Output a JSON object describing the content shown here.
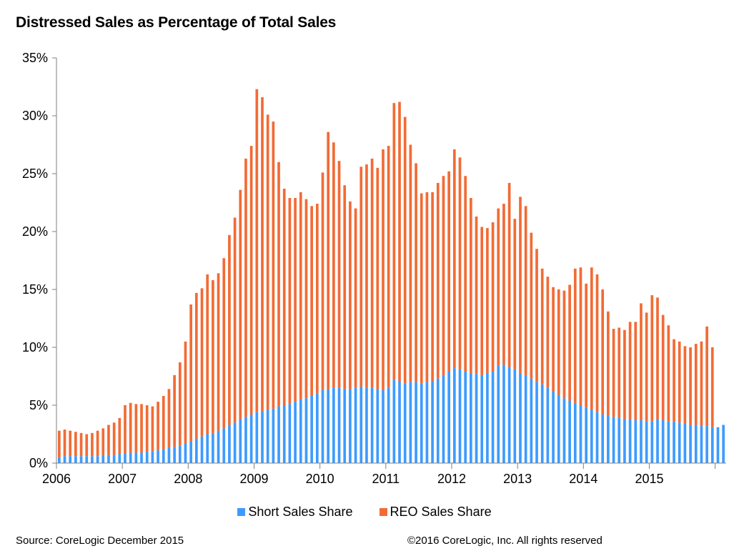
{
  "chart_data": {
    "type": "bar",
    "stacked": true,
    "title": "Distressed Sales as Percentage of Total Sales",
    "xlabel": "",
    "ylabel": "",
    "ylim": [
      0,
      35
    ],
    "y_ticks": [
      "0%",
      "5%",
      "10%",
      "15%",
      "20%",
      "25%",
      "30%",
      "35%"
    ],
    "x_ticks": [
      "2006",
      "2007",
      "2008",
      "2009",
      "2010",
      "2011",
      "2012",
      "2013",
      "2014",
      "2015"
    ],
    "start_year": 2006,
    "grid": false,
    "legend_position": "bottom",
    "series": [
      {
        "name": "Short Sales Share",
        "color": "#3d9bff",
        "values": [
          0.5,
          0.6,
          0.6,
          0.6,
          0.6,
          0.6,
          0.6,
          0.6,
          0.7,
          0.7,
          0.7,
          0.8,
          0.8,
          0.9,
          0.9,
          0.9,
          1.0,
          1.0,
          1.1,
          1.2,
          1.3,
          1.4,
          1.5,
          1.7,
          1.9,
          2.1,
          2.3,
          2.5,
          2.6,
          2.8,
          3.0,
          3.3,
          3.5,
          3.8,
          4.0,
          4.2,
          4.4,
          4.5,
          4.6,
          4.7,
          4.9,
          5.0,
          5.1,
          5.3,
          5.5,
          5.6,
          5.8,
          6.0,
          6.3,
          6.4,
          6.5,
          6.5,
          6.4,
          6.4,
          6.5,
          6.6,
          6.5,
          6.5,
          6.4,
          6.3,
          6.5,
          7.2,
          7.1,
          6.9,
          7.0,
          7.0,
          6.9,
          7.0,
          7.1,
          7.3,
          7.6,
          7.9,
          8.2,
          8.1,
          7.9,
          7.8,
          7.7,
          7.6,
          7.8,
          7.9,
          8.4,
          8.5,
          8.3,
          8.1,
          7.8,
          7.6,
          7.3,
          7.0,
          6.8,
          6.5,
          6.2,
          5.9,
          5.6,
          5.4,
          5.2,
          5.0,
          4.8,
          4.6,
          4.4,
          4.2,
          4.1,
          4.0,
          3.9,
          3.8,
          3.8,
          3.7,
          3.7,
          3.6,
          3.6,
          3.8,
          3.7,
          3.6,
          3.6,
          3.5,
          3.4,
          3.3,
          3.3,
          3.2,
          3.2,
          3.1,
          3.1,
          3.3
        ]
      },
      {
        "name": "REO Sales Share",
        "color": "#f26b35",
        "values": [
          2.3,
          2.3,
          2.2,
          2.1,
          2.0,
          1.9,
          2.0,
          2.2,
          2.3,
          2.6,
          2.8,
          3.1,
          4.2,
          4.3,
          4.2,
          4.2,
          4.0,
          3.9,
          4.2,
          4.6,
          5.1,
          6.2,
          7.2,
          8.8,
          11.8,
          12.6,
          12.8,
          13.8,
          13.2,
          13.6,
          14.7,
          16.4,
          17.7,
          19.8,
          22.3,
          23.2,
          27.9,
          27.1,
          25.5,
          24.8,
          21.1,
          18.7,
          17.8,
          17.6,
          17.9,
          17.2,
          16.4,
          16.4,
          18.8,
          22.2,
          21.2,
          19.6,
          17.6,
          16.2,
          15.5,
          19.0,
          19.3,
          19.8,
          19.1,
          20.8,
          20.9,
          23.9,
          24.1,
          23.0,
          20.5,
          18.9,
          16.4,
          16.4,
          16.3,
          16.9,
          17.2,
          17.3,
          18.9,
          18.3,
          16.9,
          15.1,
          13.6,
          12.8,
          12.5,
          12.9,
          13.6,
          13.9,
          15.9,
          13.0,
          15.2,
          14.6,
          12.6,
          11.5,
          10.0,
          9.6,
          9.0,
          9.1,
          9.3,
          10.0,
          11.6,
          11.9,
          10.7,
          12.3,
          11.9,
          10.8,
          9.0,
          7.6,
          7.8,
          7.7,
          8.4,
          8.5,
          10.1,
          9.4,
          10.9,
          10.5,
          9.1,
          8.3,
          7.1,
          7.0,
          6.7,
          6.7,
          7.0,
          7.3,
          8.6,
          6.9
        ]
      }
    ]
  },
  "footer": {
    "source": "Source: CoreLogic December 2015",
    "copyright": "©2016 CoreLogic, Inc. All rights reserved"
  }
}
